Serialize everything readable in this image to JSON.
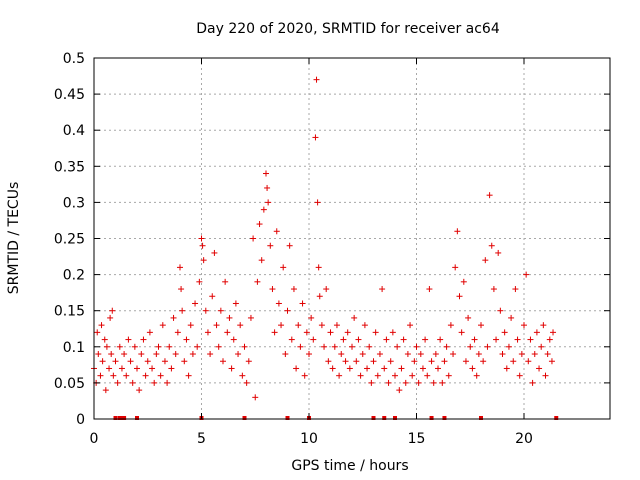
{
  "chart_data": {
    "type": "scatter",
    "title": "Day 220 of 2020, SRMTID for receiver ac64",
    "xlabel": "GPS time / hours",
    "ylabel": "SRMTID / TECUs",
    "xlim": [
      0,
      24
    ],
    "ylim": [
      0,
      0.5
    ],
    "xticks": [
      0,
      5,
      10,
      15,
      20
    ],
    "yticks": [
      0,
      0.05,
      0.1,
      0.15,
      0.2,
      0.25,
      0.3,
      0.35,
      0.4,
      0.45,
      0.5
    ],
    "xtick_labels": [
      "0",
      "5",
      "10",
      "15",
      "20"
    ],
    "ytick_labels": [
      "0",
      "0.05",
      "0.1",
      "0.15",
      "0.2",
      "0.25",
      "0.3",
      "0.35",
      "0.4",
      "0.45",
      "0.5"
    ],
    "grid": true,
    "marker": "+",
    "color": "#e00000",
    "series": [
      {
        "name": "SRMTID",
        "points": [
          [
            0.0,
            0.07
          ],
          [
            0.1,
            0.05
          ],
          [
            0.15,
            0.12
          ],
          [
            0.2,
            0.09
          ],
          [
            0.3,
            0.06
          ],
          [
            0.35,
            0.13
          ],
          [
            0.4,
            0.08
          ],
          [
            0.5,
            0.11
          ],
          [
            0.55,
            0.04
          ],
          [
            0.6,
            0.1
          ],
          [
            0.7,
            0.07
          ],
          [
            0.75,
            0.14
          ],
          [
            0.8,
            0.09
          ],
          [
            0.85,
            0.15
          ],
          [
            0.9,
            0.06
          ],
          [
            1.0,
            0.08
          ],
          [
            1.1,
            0.05
          ],
          [
            1.2,
            0.1
          ],
          [
            1.3,
            0.07
          ],
          [
            1.4,
            0.09
          ],
          [
            1.5,
            0.06
          ],
          [
            1.6,
            0.11
          ],
          [
            1.7,
            0.08
          ],
          [
            1.8,
            0.05
          ],
          [
            1.9,
            0.1
          ],
          [
            2.0,
            0.07
          ],
          [
            2.1,
            0.04
          ],
          [
            2.2,
            0.09
          ],
          [
            2.3,
            0.11
          ],
          [
            2.4,
            0.06
          ],
          [
            2.5,
            0.08
          ],
          [
            2.6,
            0.12
          ],
          [
            2.7,
            0.07
          ],
          [
            2.8,
            0.05
          ],
          [
            2.9,
            0.09
          ],
          [
            3.0,
            0.1
          ],
          [
            3.1,
            0.06
          ],
          [
            3.2,
            0.13
          ],
          [
            3.3,
            0.08
          ],
          [
            3.4,
            0.05
          ],
          [
            3.5,
            0.1
          ],
          [
            3.6,
            0.07
          ],
          [
            3.7,
            0.14
          ],
          [
            3.8,
            0.09
          ],
          [
            3.9,
            0.12
          ],
          [
            4.0,
            0.21
          ],
          [
            4.05,
            0.18
          ],
          [
            4.1,
            0.15
          ],
          [
            4.2,
            0.08
          ],
          [
            4.3,
            0.11
          ],
          [
            4.4,
            0.06
          ],
          [
            4.5,
            0.13
          ],
          [
            4.6,
            0.09
          ],
          [
            4.7,
            0.16
          ],
          [
            4.8,
            0.1
          ],
          [
            4.9,
            0.19
          ],
          [
            5.0,
            0.25
          ],
          [
            5.05,
            0.24
          ],
          [
            5.1,
            0.22
          ],
          [
            5.2,
            0.15
          ],
          [
            5.3,
            0.12
          ],
          [
            5.4,
            0.09
          ],
          [
            5.5,
            0.17
          ],
          [
            5.6,
            0.23
          ],
          [
            5.7,
            0.13
          ],
          [
            5.8,
            0.1
          ],
          [
            5.9,
            0.15
          ],
          [
            6.0,
            0.08
          ],
          [
            6.1,
            0.19
          ],
          [
            6.2,
            0.12
          ],
          [
            6.3,
            0.14
          ],
          [
            6.4,
            0.07
          ],
          [
            6.5,
            0.11
          ],
          [
            6.6,
            0.16
          ],
          [
            6.7,
            0.09
          ],
          [
            6.8,
            0.13
          ],
          [
            6.9,
            0.06
          ],
          [
            7.0,
            0.1
          ],
          [
            7.1,
            0.05
          ],
          [
            7.2,
            0.08
          ],
          [
            7.3,
            0.14
          ],
          [
            7.4,
            0.25
          ],
          [
            7.5,
            0.03
          ],
          [
            7.6,
            0.19
          ],
          [
            7.7,
            0.27
          ],
          [
            7.8,
            0.22
          ],
          [
            7.9,
            0.29
          ],
          [
            8.0,
            0.34
          ],
          [
            8.05,
            0.32
          ],
          [
            8.1,
            0.3
          ],
          [
            8.2,
            0.24
          ],
          [
            8.3,
            0.18
          ],
          [
            8.4,
            0.12
          ],
          [
            8.5,
            0.26
          ],
          [
            8.6,
            0.16
          ],
          [
            8.7,
            0.13
          ],
          [
            8.8,
            0.21
          ],
          [
            8.9,
            0.09
          ],
          [
            9.0,
            0.15
          ],
          [
            9.1,
            0.24
          ],
          [
            9.2,
            0.11
          ],
          [
            9.3,
            0.18
          ],
          [
            9.4,
            0.07
          ],
          [
            9.5,
            0.13
          ],
          [
            9.6,
            0.1
          ],
          [
            9.7,
            0.16
          ],
          [
            9.8,
            0.06
          ],
          [
            9.9,
            0.12
          ],
          [
            10.0,
            0.09
          ],
          [
            10.1,
            0.14
          ],
          [
            10.2,
            0.11
          ],
          [
            10.3,
            0.39
          ],
          [
            10.35,
            0.47
          ],
          [
            10.4,
            0.3
          ],
          [
            10.45,
            0.21
          ],
          [
            10.5,
            0.17
          ],
          [
            10.6,
            0.13
          ],
          [
            10.7,
            0.1
          ],
          [
            10.8,
            0.18
          ],
          [
            10.9,
            0.08
          ],
          [
            11.0,
            0.12
          ],
          [
            11.1,
            0.07
          ],
          [
            11.2,
            0.1
          ],
          [
            11.3,
            0.13
          ],
          [
            11.4,
            0.06
          ],
          [
            11.5,
            0.09
          ],
          [
            11.6,
            0.11
          ],
          [
            11.7,
            0.08
          ],
          [
            11.8,
            0.12
          ],
          [
            11.9,
            0.07
          ],
          [
            12.0,
            0.1
          ],
          [
            12.1,
            0.14
          ],
          [
            12.2,
            0.08
          ],
          [
            12.3,
            0.11
          ],
          [
            12.4,
            0.06
          ],
          [
            12.5,
            0.09
          ],
          [
            12.6,
            0.13
          ],
          [
            12.7,
            0.07
          ],
          [
            12.8,
            0.1
          ],
          [
            12.9,
            0.05
          ],
          [
            13.0,
            0.08
          ],
          [
            13.1,
            0.12
          ],
          [
            13.2,
            0.06
          ],
          [
            13.3,
            0.09
          ],
          [
            13.4,
            0.18
          ],
          [
            13.5,
            0.07
          ],
          [
            13.6,
            0.11
          ],
          [
            13.7,
            0.05
          ],
          [
            13.8,
            0.08
          ],
          [
            13.9,
            0.12
          ],
          [
            14.0,
            0.06
          ],
          [
            14.1,
            0.1
          ],
          [
            14.2,
            0.04
          ],
          [
            14.3,
            0.07
          ],
          [
            14.4,
            0.11
          ],
          [
            14.5,
            0.05
          ],
          [
            14.6,
            0.09
          ],
          [
            14.7,
            0.13
          ],
          [
            14.8,
            0.06
          ],
          [
            14.9,
            0.08
          ],
          [
            15.0,
            0.1
          ],
          [
            15.1,
            0.05
          ],
          [
            15.2,
            0.09
          ],
          [
            15.3,
            0.07
          ],
          [
            15.4,
            0.11
          ],
          [
            15.5,
            0.06
          ],
          [
            15.6,
            0.18
          ],
          [
            15.7,
            0.08
          ],
          [
            15.8,
            0.05
          ],
          [
            15.9,
            0.09
          ],
          [
            16.0,
            0.07
          ],
          [
            16.1,
            0.11
          ],
          [
            16.2,
            0.05
          ],
          [
            16.3,
            0.08
          ],
          [
            16.4,
            0.1
          ],
          [
            16.5,
            0.06
          ],
          [
            16.6,
            0.13
          ],
          [
            16.7,
            0.09
          ],
          [
            16.8,
            0.21
          ],
          [
            16.9,
            0.26
          ],
          [
            17.0,
            0.17
          ],
          [
            17.1,
            0.12
          ],
          [
            17.2,
            0.19
          ],
          [
            17.3,
            0.08
          ],
          [
            17.4,
            0.14
          ],
          [
            17.5,
            0.1
          ],
          [
            17.6,
            0.07
          ],
          [
            17.7,
            0.11
          ],
          [
            17.8,
            0.06
          ],
          [
            17.9,
            0.09
          ],
          [
            18.0,
            0.13
          ],
          [
            18.1,
            0.08
          ],
          [
            18.2,
            0.22
          ],
          [
            18.3,
            0.1
          ],
          [
            18.4,
            0.31
          ],
          [
            18.5,
            0.24
          ],
          [
            18.6,
            0.18
          ],
          [
            18.7,
            0.11
          ],
          [
            18.8,
            0.23
          ],
          [
            18.9,
            0.15
          ],
          [
            19.0,
            0.09
          ],
          [
            19.1,
            0.12
          ],
          [
            19.2,
            0.07
          ],
          [
            19.3,
            0.1
          ],
          [
            19.4,
            0.14
          ],
          [
            19.5,
            0.08
          ],
          [
            19.6,
            0.18
          ],
          [
            19.7,
            0.11
          ],
          [
            19.8,
            0.06
          ],
          [
            19.9,
            0.09
          ],
          [
            20.0,
            0.13
          ],
          [
            20.1,
            0.2
          ],
          [
            20.2,
            0.08
          ],
          [
            20.3,
            0.11
          ],
          [
            20.4,
            0.05
          ],
          [
            20.5,
            0.09
          ],
          [
            20.6,
            0.12
          ],
          [
            20.7,
            0.07
          ],
          [
            20.8,
            0.1
          ],
          [
            20.9,
            0.13
          ],
          [
            21.0,
            0.06
          ],
          [
            21.1,
            0.09
          ],
          [
            21.2,
            0.11
          ],
          [
            21.3,
            0.08
          ],
          [
            21.35,
            0.12
          ]
        ]
      }
    ],
    "baseline_marks_x": [
      1.0,
      1.2,
      1.3,
      1.4,
      2.0,
      5.0,
      7.0,
      9.0,
      10.0,
      13.0,
      13.5,
      14.0,
      15.7,
      16.3,
      18.0,
      21.5
    ]
  }
}
